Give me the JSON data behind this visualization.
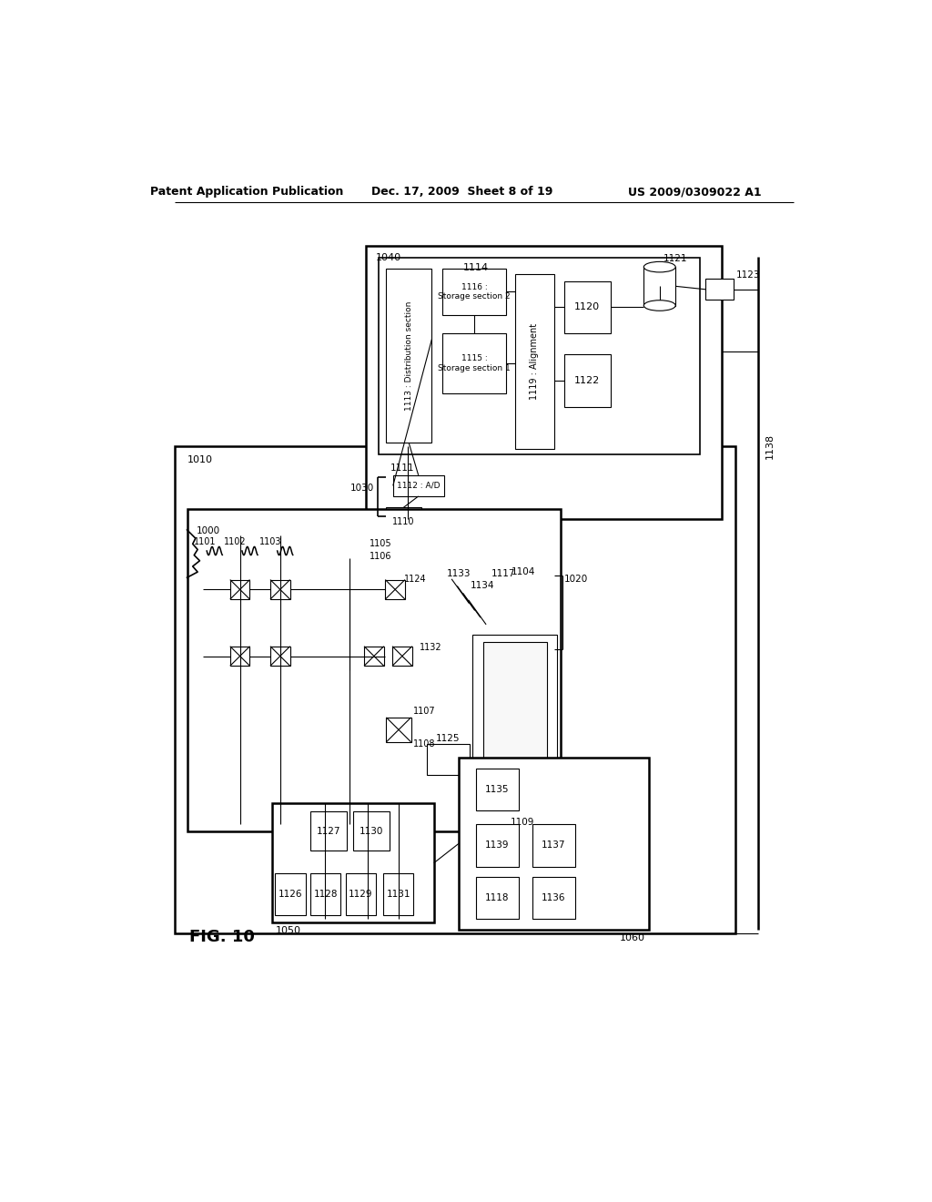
{
  "title_left": "Patent Application Publication",
  "title_mid": "Dec. 17, 2009  Sheet 8 of 19",
  "title_right": "US 2009/0309022 A1",
  "fig_label": "FIG. 10"
}
